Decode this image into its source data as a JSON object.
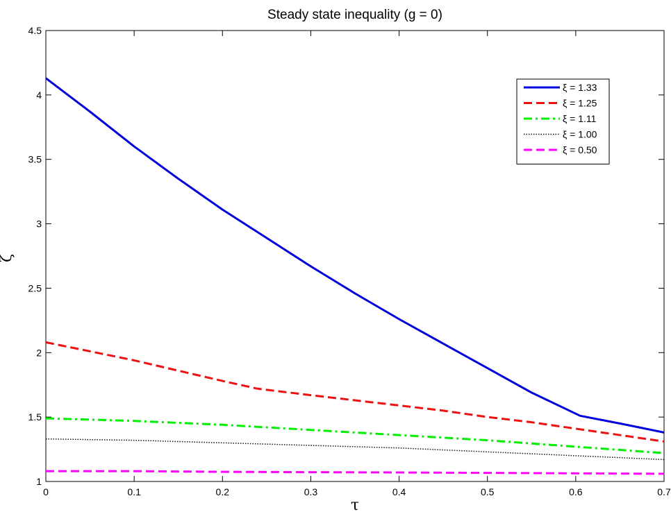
{
  "chart_data": {
    "type": "line",
    "title": "Steady state inequality (g = 0)",
    "xlabel": "τ",
    "ylabel": "ζ",
    "xlim": [
      0,
      0.7
    ],
    "ylim": [
      1,
      4.5
    ],
    "xticks": [
      0,
      0.1,
      0.2,
      0.3,
      0.4,
      0.5,
      0.6,
      0.7
    ],
    "xtick_labels": [
      "0",
      "0.1",
      "0.2",
      "0.3",
      "0.4",
      "0.5",
      "0.6",
      "0.7"
    ],
    "yticks": [
      1,
      1.5,
      2,
      2.5,
      3,
      3.5,
      4,
      4.5
    ],
    "ytick_labels": [
      "1",
      "1.5",
      "2",
      "2.5",
      "3",
      "3.5",
      "4",
      "4.5"
    ],
    "grid": false,
    "legend_position": "top-right",
    "series": [
      {
        "name": "ξ = 1.33",
        "color": "#0000dd",
        "style": "solid",
        "x": [
          0,
          0.05,
          0.1,
          0.15,
          0.2,
          0.25,
          0.3,
          0.35,
          0.4,
          0.45,
          0.5,
          0.55,
          0.605,
          0.65,
          0.7
        ],
        "y": [
          4.13,
          3.87,
          3.6,
          3.35,
          3.11,
          2.89,
          2.67,
          2.46,
          2.26,
          2.07,
          1.88,
          1.69,
          1.51,
          1.45,
          1.38
        ]
      },
      {
        "name": "ξ = 1.25",
        "color": "#ee1111",
        "style": "dashed",
        "x": [
          0,
          0.05,
          0.1,
          0.15,
          0.2,
          0.24,
          0.3,
          0.35,
          0.4,
          0.45,
          0.5,
          0.55,
          0.6,
          0.65,
          0.7
        ],
        "y": [
          2.08,
          2.01,
          1.94,
          1.86,
          1.78,
          1.72,
          1.67,
          1.63,
          1.59,
          1.55,
          1.5,
          1.46,
          1.41,
          1.36,
          1.31
        ]
      },
      {
        "name": "ξ = 1.11",
        "color": "#00ee00",
        "style": "dashdot",
        "x": [
          0,
          0.1,
          0.2,
          0.3,
          0.4,
          0.5,
          0.6,
          0.7
        ],
        "y": [
          1.49,
          1.47,
          1.44,
          1.4,
          1.36,
          1.32,
          1.27,
          1.22
        ]
      },
      {
        "name": "ξ = 1.00",
        "color": "#111111",
        "style": "dotted",
        "x": [
          0,
          0.1,
          0.2,
          0.3,
          0.4,
          0.5,
          0.6,
          0.7
        ],
        "y": [
          1.33,
          1.32,
          1.3,
          1.28,
          1.26,
          1.23,
          1.2,
          1.17
        ]
      },
      {
        "name": "ξ = 0.50",
        "color": "#ff00ff",
        "style": "dashed",
        "x": [
          0,
          0.1,
          0.2,
          0.3,
          0.4,
          0.5,
          0.6,
          0.7
        ],
        "y": [
          1.08,
          1.08,
          1.075,
          1.072,
          1.07,
          1.067,
          1.063,
          1.06
        ]
      }
    ]
  }
}
